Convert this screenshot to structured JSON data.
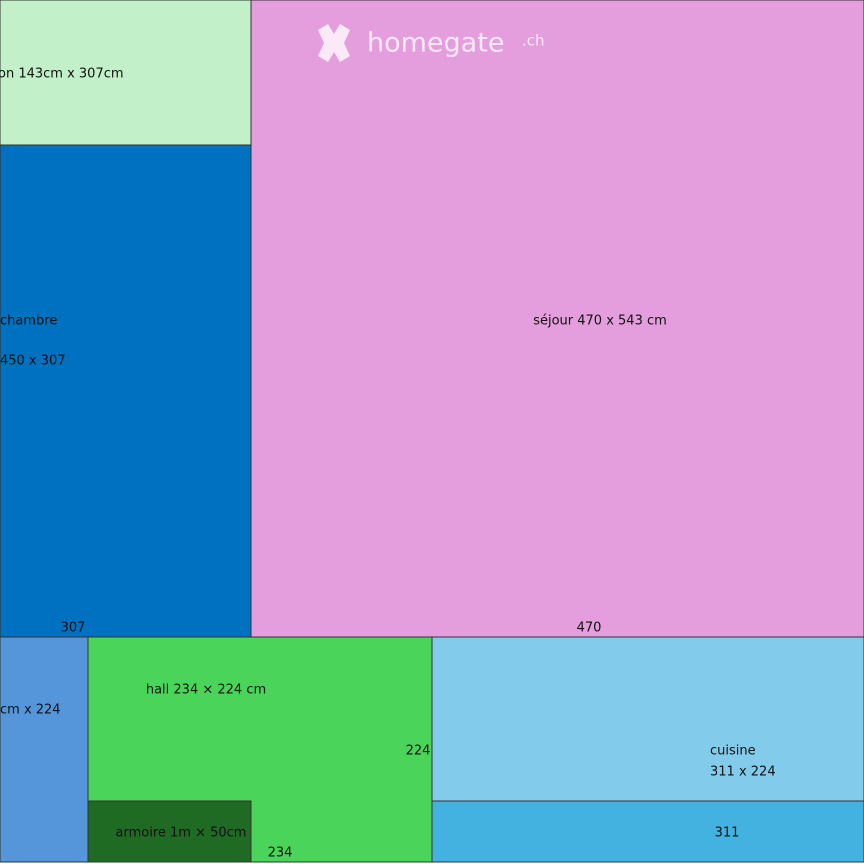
{
  "logo": {
    "name": "homegate",
    "suffix": ".ch"
  },
  "rooms": [
    {
      "label": "on 143cm x 307cm"
    },
    {
      "label": "chambre",
      "size": "450 x 307",
      "dimension": "307"
    },
    {
      "label": "séjour 470 x 543 cm",
      "dimension": "470"
    },
    {
      "label": "cm x 224"
    },
    {
      "label": "hall 234 × 224 cm",
      "dimension": "224",
      "dimension2": "234"
    },
    {
      "label": "armoire 1m × 50cm"
    },
    {
      "label": "cuisine",
      "size": "311 x 224",
      "dimension": "311"
    }
  ]
}
